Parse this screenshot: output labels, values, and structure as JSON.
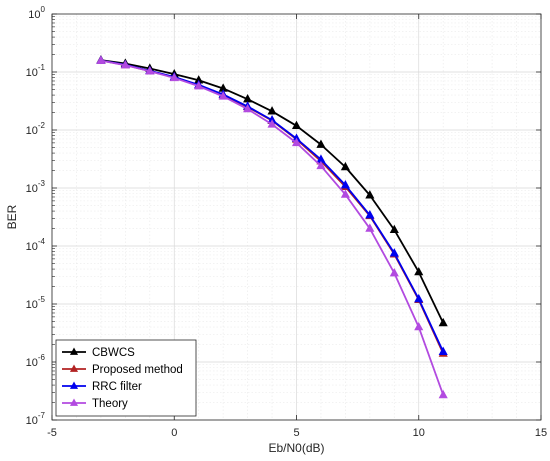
{
  "chart_data": {
    "type": "line",
    "title": "",
    "xlabel": "Eb/N0(dB)",
    "ylabel": "BER",
    "x_scale": "linear",
    "y_scale": "log",
    "xlim": [
      -5,
      15
    ],
    "ylim": [
      1e-07,
      1
    ],
    "x_ticks": [
      -5,
      0,
      5,
      10,
      15
    ],
    "x_tick_labels": [
      "-5",
      "0",
      "5",
      "10",
      "15"
    ],
    "y_ticks": [
      1e-07,
      1e-06,
      1e-05,
      0.0001,
      0.001,
      0.01,
      0.1,
      1
    ],
    "y_tick_labels": [
      {
        "base": "10",
        "exp": "-7"
      },
      {
        "base": "10",
        "exp": "-6"
      },
      {
        "base": "10",
        "exp": "-5"
      },
      {
        "base": "10",
        "exp": "-4"
      },
      {
        "base": "10",
        "exp": "-3"
      },
      {
        "base": "10",
        "exp": "-2"
      },
      {
        "base": "10",
        "exp": "-1"
      },
      {
        "base": "10",
        "exp": "0"
      }
    ],
    "grid": true,
    "minor_grid": true,
    "legend_position": "bottom-left",
    "x": [
      -3,
      -2,
      -1,
      0,
      1,
      2,
      3,
      4,
      5,
      6,
      7,
      8,
      9,
      10,
      11
    ],
    "series": [
      {
        "name": "CBWCS",
        "color": "#000000",
        "marker": "triangle",
        "values": [
          0.16,
          0.14,
          0.115,
          0.092,
          0.072,
          0.052,
          0.034,
          0.021,
          0.0118,
          0.0056,
          0.0023,
          0.00075,
          0.00019,
          3.55e-05,
          4.7e-06
        ]
      },
      {
        "name": "Proposed method",
        "color": "#b22222",
        "marker": "triangle",
        "values": [
          0.158,
          0.132,
          0.104,
          0.081,
          0.059,
          0.04,
          0.025,
          0.0145,
          0.0069,
          0.0029,
          0.00105,
          0.00033,
          7.2e-05,
          1.18e-05,
          1.4e-06
        ]
      },
      {
        "name": "RRC filter",
        "color": "#0000ee",
        "marker": "triangle",
        "values": [
          0.158,
          0.133,
          0.105,
          0.082,
          0.06,
          0.041,
          0.0255,
          0.0148,
          0.0071,
          0.0031,
          0.00112,
          0.00034,
          7.5e-05,
          1.22e-05,
          1.5e-06
        ]
      },
      {
        "name": "Theory",
        "color": "#b24ae0",
        "marker": "triangle",
        "values": [
          0.157,
          0.131,
          0.103,
          0.079,
          0.057,
          0.038,
          0.023,
          0.0125,
          0.006,
          0.0024,
          0.00077,
          0.0002,
          3.4e-05,
          4e-06,
          2.7e-07
        ]
      }
    ]
  }
}
